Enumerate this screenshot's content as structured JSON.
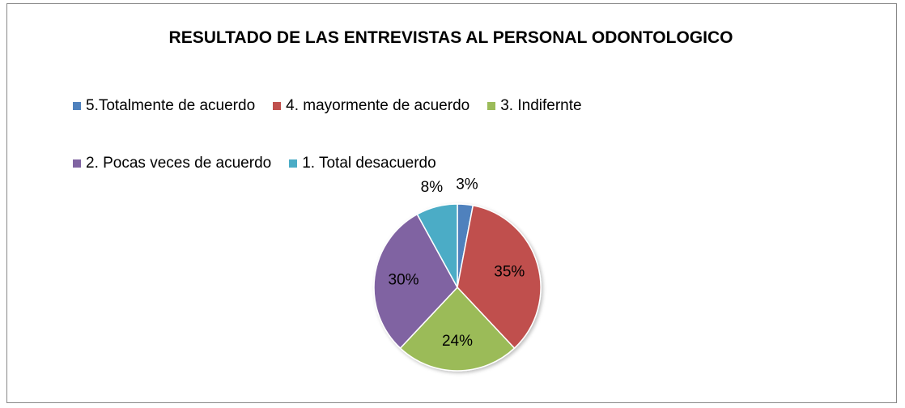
{
  "chart_data": {
    "type": "pie",
    "title": "RESULTADO DE LAS ENTREVISTAS AL PERSONAL ODONTOLOGICO",
    "categories": [
      "5.Totalmente de acuerdo",
      "4. mayormente de acuerdo",
      "3. Indifernte",
      "2. Pocas veces de acuerdo",
      "1. Total desacuerdo"
    ],
    "values": [
      3,
      35,
      24,
      30,
      8
    ],
    "value_labels": [
      "3%",
      "35%",
      "24%",
      "30%",
      "8%"
    ],
    "colors": [
      "#4f81bd",
      "#c0504d",
      "#9bbb59",
      "#8064a2",
      "#4bacc6"
    ],
    "legend": "top"
  }
}
